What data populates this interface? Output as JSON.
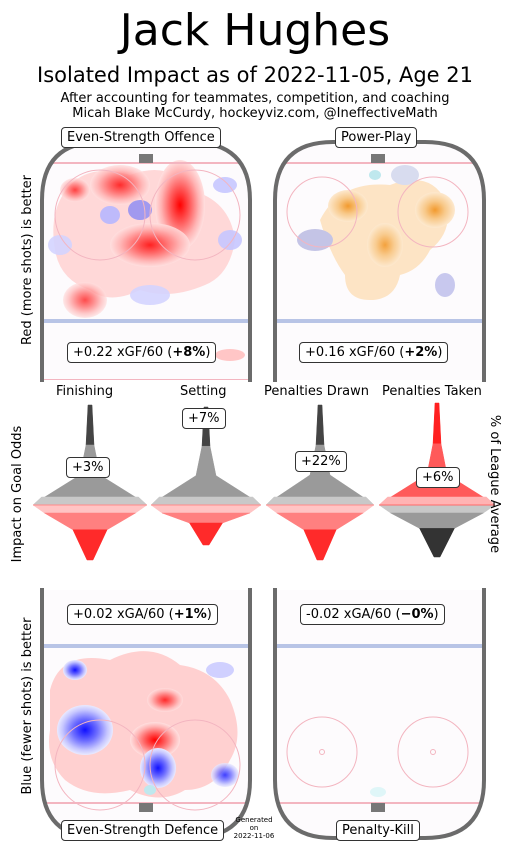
{
  "header": {
    "title": "Jack Hughes",
    "subtitle": "Isolated Impact as of 2022-11-05, Age 21",
    "note_line1": "After accounting for teammates, competition, and coaching",
    "note_line2": "Micah Blake McCurdy, hockeyviz.com, @IneffectiveMath"
  },
  "axes": {
    "left_top": "Red (more shots) is better",
    "left_middle": "Impact on Goal Odds",
    "left_bottom": "Blue (fewer shots) is better",
    "right_middle": "% of League Average"
  },
  "panels": {
    "es_offence": {
      "label": "Even-Strength Offence",
      "stat_prefix": "+0.22 xGF/60 (",
      "stat_bold": "+8%",
      "stat_suffix": ")"
    },
    "power_play": {
      "label": "Power-Play",
      "stat_prefix": "+0.16 xGF/60 (",
      "stat_bold": "+2%",
      "stat_suffix": ")"
    },
    "es_defence": {
      "label": "Even-Strength Defence",
      "stat_prefix": "+0.02 xGA/60 (",
      "stat_bold": "+1%",
      "stat_suffix": ")"
    },
    "penalty_kill": {
      "label": "Penalty-Kill",
      "stat_prefix": "-0.02 xGA/60 (",
      "stat_bold": "−0%",
      "stat_suffix": ")"
    }
  },
  "footer": {
    "gen1": "Generated",
    "gen2": "on",
    "gen3": "2022-11-06"
  },
  "chart_data": {
    "type": "violin",
    "title": "Isolated Impact as of 2022-11-05, Age 21",
    "ylabel": "Impact on Goal Odds",
    "ylabel_right": "% of League Average",
    "categories": [
      "Finishing",
      "Setting",
      "Penalties Drawn",
      "Penalties Taken"
    ],
    "values_percent": [
      3,
      7,
      22,
      6
    ],
    "value_labels": [
      "+3%",
      "+7%",
      "+22%",
      "+6%"
    ],
    "colors": {
      "positive": "#ff3b3b",
      "neutral": "#b0b0b0",
      "dark": "#333333",
      "blue": "#3333ff",
      "orange": "#f5a742"
    }
  }
}
